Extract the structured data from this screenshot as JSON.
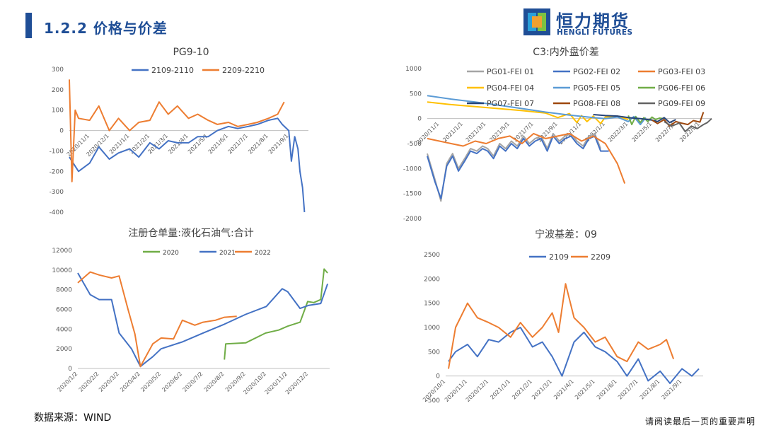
{
  "header": {
    "title": "1.2.2 价格与价差"
  },
  "logo": {
    "cn": "恒力期货",
    "en": "HENGLI FUTURES",
    "colors": [
      "#1f4e96",
      "#f0a030",
      "#2aa0d8",
      "#7cc242"
    ]
  },
  "footer": {
    "source": "数据来源：WIND",
    "disclaimer": "请阅读最后一页的重要声明"
  },
  "chart_data": [
    {
      "id": "pg910",
      "type": "line",
      "title": "PG9-10",
      "legend_position": "top",
      "ylim": [
        -400,
        300
      ],
      "yticks": [
        300,
        200,
        100,
        0,
        -100,
        -200,
        -300,
        -400
      ],
      "xlim": [
        "2020/10/1",
        "2021/10/1"
      ],
      "xticks": [
        "2020/11/1",
        "2020/12/1",
        "2021/1/1",
        "2021/2/1",
        "2021/3/1",
        "2021/4/1",
        "2021/5/1",
        "2021/6/1",
        "2021/7/1",
        "2021/8/1",
        "2021/9/1"
      ],
      "series": [
        {
          "name": "2109-2110",
          "color": "#4472c4",
          "x": [
            "2020/10/1",
            "2020/10/15",
            "2020/11/1",
            "2020/11/15",
            "2020/12/1",
            "2020/12/15",
            "2021/1/1",
            "2021/1/15",
            "2021/2/1",
            "2021/2/15",
            "2021/3/1",
            "2021/3/15",
            "2021/4/1",
            "2021/4/15",
            "2021/5/1",
            "2021/5/15",
            "2021/6/1",
            "2021/6/15",
            "2021/7/1",
            "2021/7/15",
            "2021/8/1",
            "2021/8/15",
            "2021/8/22",
            "2021/9/1",
            "2021/9/5",
            "2021/9/10",
            "2021/9/15",
            "2021/9/18",
            "2021/9/22",
            "2021/9/25"
          ],
          "values": [
            -130,
            -200,
            -160,
            -80,
            -140,
            -110,
            -90,
            -130,
            -60,
            -90,
            -50,
            -60,
            -60,
            -30,
            -30,
            0,
            20,
            10,
            20,
            30,
            50,
            60,
            30,
            0,
            -150,
            -30,
            -90,
            -200,
            -280,
            -400
          ]
        },
        {
          "name": "2209-2210",
          "color": "#ed7d31",
          "x": [
            "2020/10/1",
            "2020/10/5",
            "2020/10/10",
            "2020/10/15",
            "2020/11/1",
            "2020/11/15",
            "2020/12/1",
            "2020/12/15",
            "2021/1/1",
            "2021/1/15",
            "2021/2/1",
            "2021/2/15",
            "2021/3/1",
            "2021/3/15",
            "2021/4/1",
            "2021/4/15",
            "2021/5/1",
            "2021/5/15",
            "2021/6/1",
            "2021/6/15",
            "2021/7/1",
            "2021/7/15",
            "2021/8/1",
            "2021/8/15",
            "2021/8/25"
          ],
          "values": [
            250,
            -250,
            100,
            60,
            50,
            120,
            0,
            60,
            0,
            40,
            50,
            140,
            80,
            120,
            60,
            80,
            50,
            30,
            40,
            20,
            30,
            40,
            60,
            80,
            140
          ]
        }
      ]
    },
    {
      "id": "c3",
      "type": "line",
      "title": "C3:内外盘价差",
      "legend_position": "top",
      "ylim": [
        -2000,
        1000
      ],
      "yticks": [
        1000,
        500,
        0,
        -500,
        -1000,
        -1500,
        -2000
      ],
      "xlim": [
        "2020/10/1",
        "2022/10/1"
      ],
      "xticks": [
        "2020/11/1",
        "2021/1/1",
        "2021/3/1",
        "2021/5/1",
        "2021/7/1",
        "2021/9/1",
        "2021/11/1",
        "2022/1/1",
        "2022/3/1",
        "2022/5/1",
        "2022/7/1",
        "2022/9/1"
      ],
      "series": [
        {
          "name": "PG01-FEI 01",
          "color": "#a5a5a5",
          "x": [
            "2020/10/1",
            "2020/10/20",
            "2020/11/5",
            "2020/11/20",
            "2020/12/5",
            "2020/12/20",
            "2021/1/5",
            "2021/1/20",
            "2021/2/5",
            "2021/2/20",
            "2021/3/5",
            "2021/3/20",
            "2021/4/5",
            "2021/4/20",
            "2021/5/5",
            "2021/5/20",
            "2021/6/5",
            "2021/6/20",
            "2021/7/5",
            "2021/7/20",
            "2021/8/5",
            "2021/8/20",
            "2021/9/5",
            "2021/9/20",
            "2021/10/5",
            "2021/10/20",
            "2021/11/5",
            "2021/11/20",
            "2021/12/5",
            "2021/12/20"
          ],
          "values": [
            -700,
            -1200,
            -1650,
            -900,
            -700,
            -1000,
            -800,
            -600,
            -650,
            -550,
            -600,
            -750,
            -500,
            -600,
            -450,
            -550,
            -350,
            -500,
            -400,
            -350,
            -600,
            -300,
            -450,
            -350,
            -300,
            -450,
            -550,
            -350,
            -300,
            -600
          ]
        },
        {
          "name": "PG02-FEI 02",
          "color": "#4472c4",
          "x": [
            "2020/10/1",
            "2020/10/20",
            "2020/11/5",
            "2020/11/20",
            "2020/12/5",
            "2020/12/20",
            "2021/1/5",
            "2021/1/20",
            "2021/2/5",
            "2021/2/20",
            "2021/3/5",
            "2021/3/20",
            "2021/4/5",
            "2021/4/20",
            "2021/5/5",
            "2021/5/20",
            "2021/6/5",
            "2021/6/20",
            "2021/7/5",
            "2021/7/20",
            "2021/8/5",
            "2021/8/20",
            "2021/9/5",
            "2021/9/20",
            "2021/10/5",
            "2021/10/20",
            "2021/11/5",
            "2021/11/20",
            "2021/12/5",
            "2021/12/20",
            "2022/1/10"
          ],
          "values": [
            -750,
            -1250,
            -1600,
            -950,
            -750,
            -1050,
            -850,
            -650,
            -700,
            -600,
            -650,
            -800,
            -550,
            -650,
            -500,
            -600,
            -400,
            -550,
            -450,
            -400,
            -650,
            -350,
            -500,
            -400,
            -350,
            -500,
            -600,
            -400,
            -350,
            -650,
            -650
          ]
        },
        {
          "name": "PG03-FEI 03",
          "color": "#ed7d31",
          "x": [
            "2020/10/1",
            "2020/11/1",
            "2020/12/1",
            "2021/1/1",
            "2021/2/1",
            "2021/3/1",
            "2021/4/1",
            "2021/5/1",
            "2021/6/1",
            "2021/7/1",
            "2021/8/1",
            "2021/9/1",
            "2021/10/1",
            "2021/11/1",
            "2021/12/1",
            "2022/1/1",
            "2022/2/1",
            "2022/2/20"
          ],
          "values": [
            -400,
            -450,
            -500,
            -550,
            -450,
            -500,
            -400,
            -350,
            -500,
            -300,
            -400,
            -350,
            -300,
            -450,
            -350,
            -500,
            -900,
            -1300
          ]
        },
        {
          "name": "PG04-FEI 04",
          "color": "#ffc000",
          "x": [
            "2020/10/1",
            "2020/12/1",
            "2021/2/1",
            "2021/4/1",
            "2021/6/1",
            "2021/8/1",
            "2021/9/1",
            "2021/10/1",
            "2021/10/20",
            "2021/11/1",
            "2021/11/15",
            "2021/12/1",
            "2021/12/20",
            "2022/1/1",
            "2022/2/1",
            "2022/3/1"
          ],
          "values": [
            330,
            280,
            240,
            200,
            160,
            110,
            20,
            100,
            -80,
            60,
            -60,
            50,
            -100,
            30,
            50,
            -20
          ]
        },
        {
          "name": "PG05-FEI 05",
          "color": "#5b9bd5",
          "x": [
            "2020/10/1",
            "2020/12/1",
            "2021/2/1",
            "2021/4/1",
            "2021/6/1",
            "2021/8/1",
            "2021/10/1",
            "2021/12/1",
            "2022/1/1",
            "2022/2/1",
            "2022/3/1",
            "2022/3/15",
            "2022/4/1",
            "2022/4/15"
          ],
          "values": [
            460,
            390,
            330,
            270,
            200,
            130,
            70,
            20,
            0,
            30,
            -60,
            40,
            -120,
            20
          ]
        },
        {
          "name": "PG06-FEI 06",
          "color": "#70ad47",
          "x": [
            "2022/3/1",
            "2022/3/10",
            "2022/3/20",
            "2022/4/1",
            "2022/4/10",
            "2022/4/20",
            "2022/5/1",
            "2022/5/10",
            "2022/5/20",
            "2022/6/1"
          ],
          "values": [
            60,
            -120,
            40,
            -80,
            20,
            -60,
            30,
            -20,
            10,
            0
          ]
        },
        {
          "name": "PG07-FEI 07",
          "color": "#264478",
          "x": [
            "2021/12/1",
            "2022/1/1",
            "2022/2/1",
            "2022/3/1",
            "2022/4/1",
            "2022/5/1",
            "2022/5/15",
            "2022/6/1",
            "2022/6/15",
            "2022/7/1"
          ],
          "values": [
            80,
            60,
            50,
            20,
            0,
            -30,
            -60,
            20,
            -80,
            -20
          ]
        },
        {
          "name": "PG08-FEI 08",
          "color": "#9e480e",
          "x": [
            "2022/5/1",
            "2022/5/15",
            "2022/6/1",
            "2022/6/15",
            "2022/7/1",
            "2022/7/15",
            "2022/8/1",
            "2022/8/15",
            "2022/9/1",
            "2022/9/10"
          ],
          "values": [
            -30,
            -100,
            -20,
            -150,
            -60,
            -90,
            -120,
            -40,
            -70,
            130
          ]
        },
        {
          "name": "PG09-FEI 09",
          "color": "#636363",
          "x": [
            "2022/6/1",
            "2022/6/20",
            "2022/7/10",
            "2022/7/25",
            "2022/8/10",
            "2022/8/25",
            "2022/9/10",
            "2022/9/20",
            "2022/10/1"
          ],
          "values": [
            -60,
            -150,
            -90,
            -260,
            -150,
            -200,
            -120,
            -80,
            0
          ]
        }
      ]
    },
    {
      "id": "warehouse",
      "type": "line",
      "title": "注册仓单量:液化石油气:合计",
      "legend_position": "top",
      "ylim": [
        0,
        12000
      ],
      "yticks": [
        12000,
        10000,
        8000,
        6000,
        4000,
        2000,
        0
      ],
      "xlim": [
        "2020/1/2",
        "2021/1/2"
      ],
      "xticks": [
        "2020/1/2",
        "2020/2/2",
        "2020/3/2",
        "2020/4/2",
        "2020/5/2",
        "2020/6/2",
        "2020/7/2",
        "2020/8/2",
        "2020/9/2",
        "2020/10/2",
        "2020/11/2",
        "2020/12/2"
      ],
      "series": [
        {
          "name": "2020",
          "color": "#70ad47",
          "x": [
            "2020/8/2",
            "2020/8/4",
            "2020/9/2",
            "2020/10/1",
            "2020/10/20",
            "2020/11/2",
            "2020/11/20",
            "2020/12/1",
            "2020/12/10",
            "2020/12/20",
            "2020/12/25",
            "2020/12/30"
          ],
          "values": [
            900,
            2500,
            2600,
            3600,
            3900,
            4300,
            4700,
            6800,
            6700,
            7000,
            10100,
            9700
          ]
        },
        {
          "name": "2021",
          "color": "#4472c4",
          "x": [
            "2020/1/2",
            "2020/1/20",
            "2020/2/2",
            "2020/2/20",
            "2020/3/2",
            "2020/3/20",
            "2020/4/2",
            "2020/4/20",
            "2020/5/2",
            "2020/6/2",
            "2020/7/2",
            "2020/8/2",
            "2020/9/2",
            "2020/10/2",
            "2020/10/25",
            "2020/11/2",
            "2020/11/20",
            "2020/12/2",
            "2020/12/20",
            "2020/12/30"
          ],
          "values": [
            9700,
            7500,
            7000,
            7000,
            3600,
            2000,
            200,
            1200,
            2000,
            2700,
            3600,
            4500,
            5500,
            6300,
            8100,
            7800,
            6100,
            6400,
            6600,
            8600
          ]
        },
        {
          "name": "2022",
          "color": "#ed7d31",
          "x": [
            "2020/1/2",
            "2020/1/20",
            "2020/2/2",
            "2020/2/20",
            "2020/3/2",
            "2020/3/15",
            "2020/3/25",
            "2020/4/2",
            "2020/4/20",
            "2020/5/2",
            "2020/5/20",
            "2020/6/2",
            "2020/6/20",
            "2020/7/2",
            "2020/7/20",
            "2020/8/2",
            "2020/8/20"
          ],
          "values": [
            8700,
            9800,
            9500,
            9200,
            9400,
            6000,
            3500,
            200,
            2500,
            3100,
            3000,
            4900,
            4400,
            4700,
            4900,
            5200,
            5300
          ]
        }
      ]
    },
    {
      "id": "ningbo",
      "type": "line",
      "title": "宁波基差：09",
      "legend_position": "top",
      "ylim": [
        -500,
        2500
      ],
      "yticks": [
        2500,
        2000,
        1500,
        1000,
        500,
        0,
        -500
      ],
      "xlim": [
        "2020/10/1",
        "2021/10/1"
      ],
      "xticks": [
        "2020/10/1",
        "2020/11/1",
        "2020/12/1",
        "2021/1/1",
        "2021/2/1",
        "2021/3/1",
        "2021/4/1",
        "2021/5/1",
        "2021/6/1",
        "2021/7/1",
        "2021/8/1",
        "2021/9/1"
      ],
      "series": [
        {
          "name": "2109",
          "color": "#4472c4",
          "x": [
            "2020/10/5",
            "2020/10/15",
            "2020/11/1",
            "2020/11/15",
            "2020/12/1",
            "2020/12/15",
            "2021/1/1",
            "2021/1/15",
            "2021/2/1",
            "2021/2/15",
            "2021/3/1",
            "2021/3/15",
            "2021/4/1",
            "2021/4/15",
            "2021/5/1",
            "2021/5/15",
            "2021/6/1",
            "2021/6/15",
            "2021/7/1",
            "2021/7/15",
            "2021/8/1",
            "2021/8/15",
            "2021/9/1",
            "2021/9/15",
            "2021/9/25"
          ],
          "values": [
            300,
            500,
            650,
            400,
            750,
            700,
            900,
            1000,
            600,
            700,
            400,
            0,
            700,
            900,
            600,
            500,
            300,
            0,
            350,
            -100,
            100,
            -150,
            150,
            0,
            150
          ]
        },
        {
          "name": "2209",
          "color": "#ed7d31",
          "x": [
            "2020/10/5",
            "2020/10/15",
            "2020/11/1",
            "2020/11/15",
            "2020/12/1",
            "2020/12/15",
            "2021/1/1",
            "2021/1/15",
            "2021/2/1",
            "2021/2/15",
            "2021/3/1",
            "2021/3/10",
            "2021/3/20",
            "2021/4/1",
            "2021/4/15",
            "2021/5/1",
            "2021/5/15",
            "2021/6/1",
            "2021/6/15",
            "2021/7/1",
            "2021/7/15",
            "2021/8/1",
            "2021/8/10",
            "2021/8/20"
          ],
          "values": [
            150,
            1000,
            1500,
            1200,
            1100,
            1000,
            800,
            1100,
            800,
            1000,
            1300,
            900,
            1900,
            1200,
            1000,
            700,
            800,
            400,
            300,
            700,
            550,
            650,
            750,
            350
          ]
        }
      ]
    }
  ]
}
